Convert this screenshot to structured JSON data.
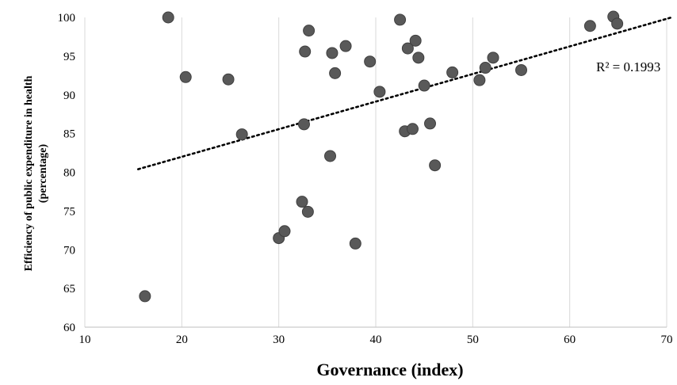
{
  "chart_data": {
    "type": "scatter",
    "title": "",
    "xlabel": "Governance (index)",
    "ylabel_lines": [
      "Efficiency of public expenditure in health",
      "(percentage)"
    ],
    "xlim": [
      10,
      70
    ],
    "ylim": [
      60,
      100
    ],
    "x_ticks": [
      10,
      20,
      30,
      40,
      50,
      60,
      70
    ],
    "y_ticks": [
      60,
      65,
      70,
      75,
      80,
      85,
      90,
      95,
      100
    ],
    "grid": "vertical",
    "marker_color": "#595959",
    "marker_edge_color": "#404040",
    "trendline": {
      "type": "linear",
      "label": "R² = 0.1993",
      "x": [
        15.5,
        70.5
      ],
      "y": [
        80.4,
        100.0
      ],
      "style": "dotted",
      "color": "#000000"
    },
    "points": [
      {
        "x": 16.2,
        "y": 64.0
      },
      {
        "x": 18.6,
        "y": 100.0
      },
      {
        "x": 20.4,
        "y": 92.3
      },
      {
        "x": 24.8,
        "y": 92.0
      },
      {
        "x": 26.2,
        "y": 84.9
      },
      {
        "x": 30.0,
        "y": 71.5
      },
      {
        "x": 30.6,
        "y": 72.4
      },
      {
        "x": 32.4,
        "y": 76.2
      },
      {
        "x": 32.6,
        "y": 86.2
      },
      {
        "x": 32.7,
        "y": 95.6
      },
      {
        "x": 33.0,
        "y": 74.9
      },
      {
        "x": 33.1,
        "y": 98.3
      },
      {
        "x": 35.3,
        "y": 82.1
      },
      {
        "x": 35.5,
        "y": 95.4
      },
      {
        "x": 35.8,
        "y": 92.8
      },
      {
        "x": 36.9,
        "y": 96.3
      },
      {
        "x": 37.9,
        "y": 70.8
      },
      {
        "x": 39.4,
        "y": 94.3
      },
      {
        "x": 40.4,
        "y": 90.4
      },
      {
        "x": 42.5,
        "y": 99.7
      },
      {
        "x": 43.0,
        "y": 85.3
      },
      {
        "x": 43.3,
        "y": 96.0
      },
      {
        "x": 43.8,
        "y": 85.6
      },
      {
        "x": 44.1,
        "y": 97.0
      },
      {
        "x": 44.4,
        "y": 94.8
      },
      {
        "x": 45.0,
        "y": 91.2
      },
      {
        "x": 45.6,
        "y": 86.3
      },
      {
        "x": 46.1,
        "y": 80.9
      },
      {
        "x": 47.9,
        "y": 92.9
      },
      {
        "x": 50.7,
        "y": 91.9
      },
      {
        "x": 51.3,
        "y": 93.5
      },
      {
        "x": 52.1,
        "y": 94.8
      },
      {
        "x": 55.0,
        "y": 93.2
      },
      {
        "x": 62.1,
        "y": 98.9
      },
      {
        "x": 64.5,
        "y": 100.1
      },
      {
        "x": 64.9,
        "y": 99.2
      }
    ]
  }
}
